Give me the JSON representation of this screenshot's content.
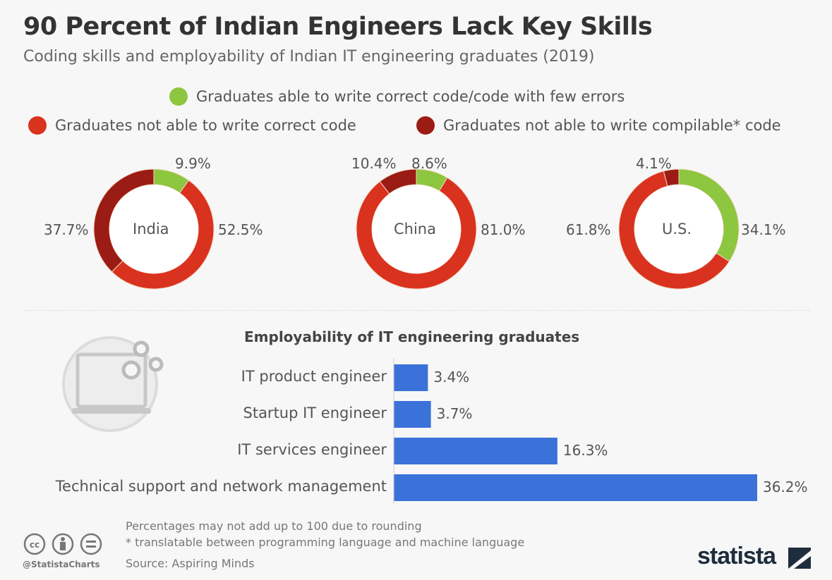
{
  "title": "90 Percent of Indian Engineers Lack Key Skills",
  "subtitle": "Coding skills and employability of Indian IT engineering graduates (2019)",
  "colors": {
    "green": "#8dc63f",
    "red": "#d9321f",
    "darkred": "#9b1c14",
    "blue": "#3b72d9"
  },
  "chart_data": [
    {
      "type": "pie",
      "variant": "donut",
      "legend": [
        {
          "name": "Graduates able to write correct code/code with few errors",
          "color": "#8dc63f"
        },
        {
          "name": "Graduates not able to write correct code",
          "color": "#d9321f"
        },
        {
          "name": "Graduates not able to write compilable* code",
          "color": "#9b1c14"
        }
      ],
      "legend_placement": "top",
      "donuts": [
        {
          "label": "India",
          "values": [
            9.9,
            52.5,
            37.7
          ],
          "value_labels": [
            "9.9%",
            "52.5%",
            "37.7%"
          ]
        },
        {
          "label": "China",
          "values": [
            8.6,
            81.0,
            10.4
          ],
          "value_labels": [
            "8.6%",
            "81.0%",
            "10.4%"
          ]
        },
        {
          "label": "U.S.",
          "values": [
            34.1,
            61.8,
            4.1
          ],
          "value_labels": [
            "34.1%",
            "61.8%",
            "4.1%"
          ]
        }
      ]
    },
    {
      "type": "bar",
      "orientation": "horizontal",
      "title": "Employability of IT engineering graduates",
      "categories": [
        "IT product engineer",
        "Startup IT engineer",
        "IT services engineer",
        "Technical support and network management"
      ],
      "values": [
        3.4,
        3.7,
        16.3,
        36.2
      ],
      "value_labels": [
        "3.4%",
        "3.7%",
        "16.3%",
        "36.2%"
      ],
      "color": "#3b72d9"
    }
  ],
  "footer": {
    "note1": "Percentages may not add up to 100 due to rounding",
    "note2": "* translatable between programming language and machine language",
    "source": "Source: Aspiring Minds",
    "handle": "@StatistaCharts",
    "brand": "statista"
  }
}
